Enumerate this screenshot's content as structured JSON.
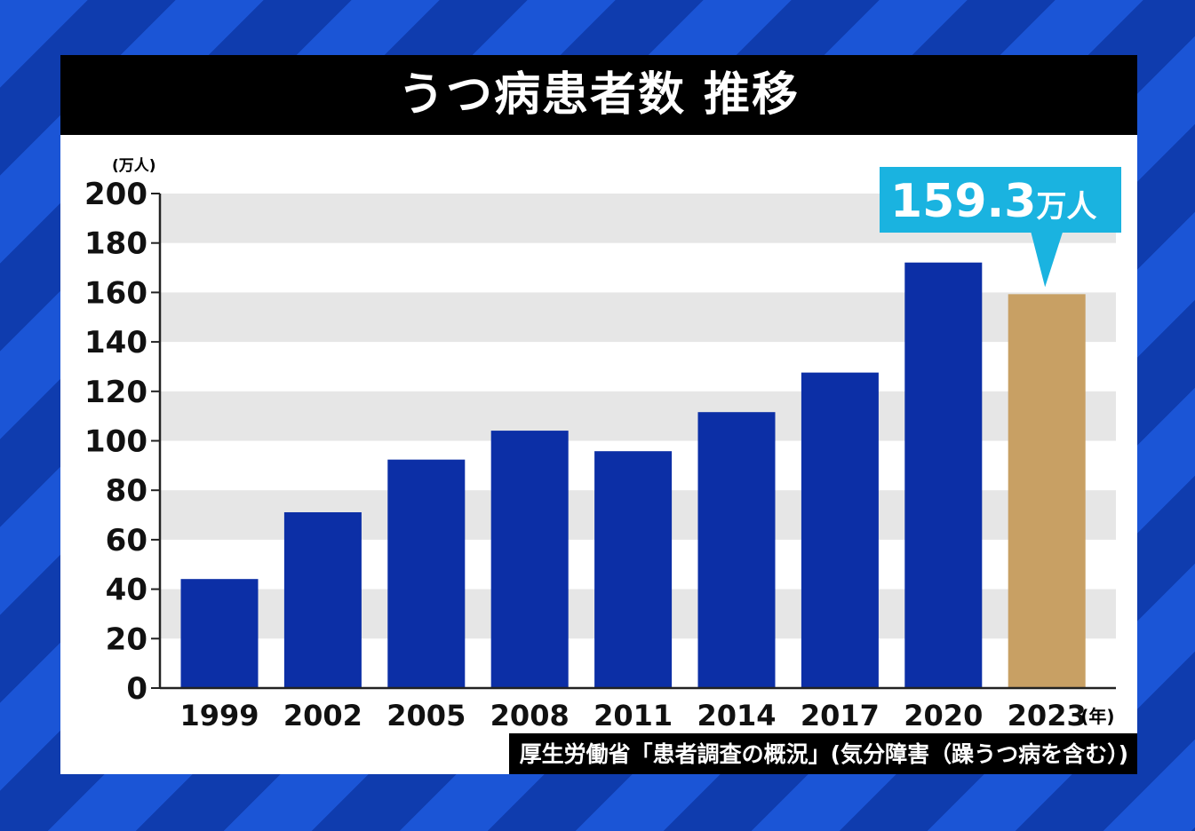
{
  "chart_data": {
    "type": "bar",
    "title": "うつ病患者数 推移",
    "ylabel": "(万人)",
    "xlabel": "(年)",
    "categories": [
      "1999",
      "2002",
      "2005",
      "2008",
      "2011",
      "2014",
      "2017",
      "2020",
      "2023"
    ],
    "values": [
      44.1,
      71.1,
      92.4,
      104.1,
      95.8,
      111.6,
      127.6,
      172.1,
      159.3
    ],
    "ylim": [
      0,
      200
    ],
    "yticks": [
      0,
      20,
      40,
      60,
      80,
      100,
      120,
      140,
      160,
      180,
      200
    ],
    "grid": "alternating horizontal bands",
    "colors": {
      "bar": "#0c2fa6",
      "highlight": "#c8a064",
      "band": "#e6e6e6",
      "callout": "#1ab3e0"
    },
    "annotation": {
      "category": "2023",
      "value_text": "159.3",
      "unit": "万人"
    },
    "source": "厚生労働省「患者調査の概況」(気分障害（躁うつ病を含む）)"
  }
}
